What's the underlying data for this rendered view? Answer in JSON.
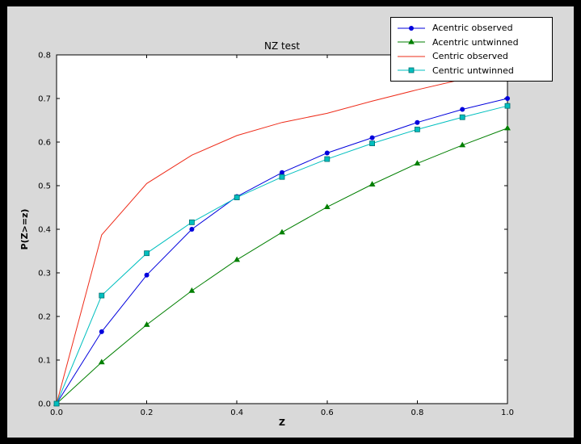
{
  "colors": {
    "window_bg": "#000000",
    "figure_bg": "#d9d9d9",
    "plot_bg": "#ffffff",
    "frame": "#000000",
    "tick": "#000000",
    "text": "#000000",
    "legend_bg": "#ffffff",
    "legend_border": "#000000"
  },
  "chart_data": {
    "type": "line",
    "title": "NZ test",
    "xlabel": "Z",
    "ylabel": "P(Z>=z)",
    "xlim": [
      0.0,
      1.0
    ],
    "ylim": [
      0.0,
      0.8
    ],
    "grid": false,
    "legend_position": "upper right",
    "x_tick_labels": [
      "0.0",
      "0.2",
      "0.4",
      "0.6",
      "0.8",
      "1.0"
    ],
    "y_tick_labels": [
      "0.0",
      "0.1",
      "0.2",
      "0.3",
      "0.4",
      "0.5",
      "0.6",
      "0.7",
      "0.8"
    ],
    "x": [
      0.0,
      0.1,
      0.2,
      0.3,
      0.4,
      0.5,
      0.6,
      0.7,
      0.8,
      0.9,
      1.0
    ],
    "series": [
      {
        "name": "Acentric observed",
        "color": "#0000dd",
        "marker": "circle",
        "values": [
          0.0,
          0.165,
          0.295,
          0.4,
          0.475,
          0.53,
          0.575,
          0.61,
          0.645,
          0.675,
          0.7
        ]
      },
      {
        "name": "Acentric untwinned",
        "color": "#007f00",
        "marker": "triangle",
        "values": [
          0.0,
          0.095,
          0.181,
          0.259,
          0.33,
          0.393,
          0.451,
          0.503,
          0.551,
          0.593,
          0.632
        ]
      },
      {
        "name": "Centric observed",
        "color": "#ee2c1a",
        "marker": "none",
        "values": [
          0.0,
          0.387,
          0.505,
          0.57,
          0.615,
          0.645,
          0.666,
          0.694,
          0.72,
          0.744,
          0.766
        ]
      },
      {
        "name": "Centric untwinned",
        "color": "#00bfbf",
        "marker": "square",
        "marker_edge": "#006e6e",
        "values": [
          0.0,
          0.248,
          0.345,
          0.416,
          0.473,
          0.52,
          0.561,
          0.597,
          0.629,
          0.657,
          0.683
        ]
      }
    ]
  }
}
